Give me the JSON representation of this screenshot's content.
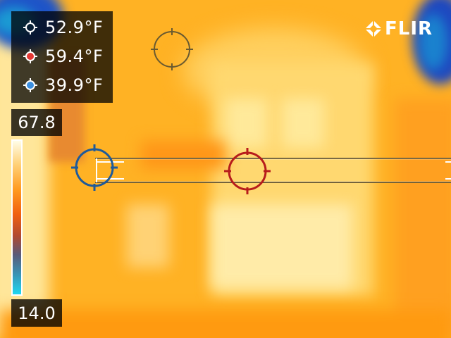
{
  "measurements": [
    {
      "icon": "spot-crosshair-icon",
      "value": "52.9°F",
      "color": "#ffffff"
    },
    {
      "icon": "hot-spot-icon",
      "value": "59.4°F",
      "color": "#e53935"
    },
    {
      "icon": "cold-spot-icon",
      "value": "39.9°F",
      "color": "#3b8fe0"
    }
  ],
  "scale": {
    "max": "67.8",
    "min": "14.0"
  },
  "brand": {
    "logo_text": "FLIR"
  },
  "colors": {
    "hot": "#b71c1c",
    "cold": "#1e5a9a",
    "spot": "#6a5a30",
    "palette_top": "#fffde8",
    "palette_bottom": "#20d8f0"
  }
}
